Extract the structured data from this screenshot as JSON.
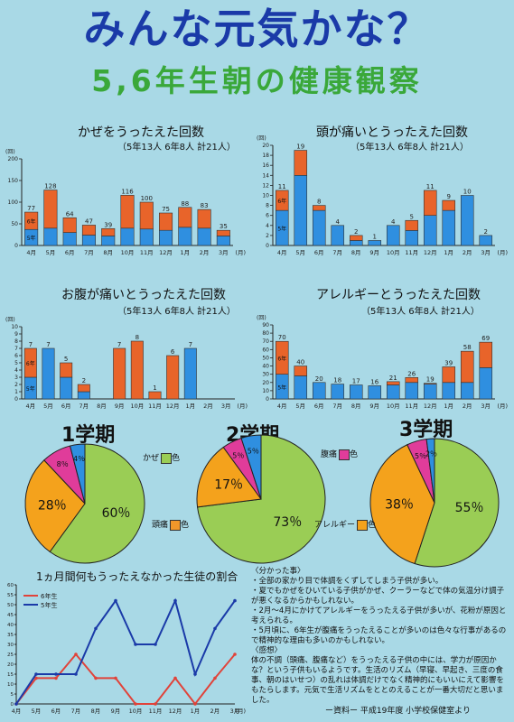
{
  "header": {
    "title": "みんな元気かな？",
    "subtitle": "5,6年生朝の健康観察"
  },
  "colors": {
    "grade5": "#2f8fe0",
    "grade6": "#e8642a",
    "cold": "#9acd55",
    "headache": "#f0972a",
    "stomach": "#e03c9a",
    "allergy": "#f4a21c",
    "pie_bg": "#b9e07a",
    "line5": "#1a3aa8",
    "line6": "#e0433a"
  },
  "chart_data": [
    {
      "id": "cold",
      "type": "bar",
      "stacked": true,
      "title": "かぜをうったえた回数",
      "note": "（5年13人 6年8人 計21人）",
      "unit": "(回)",
      "xunit": "(月)",
      "categories": [
        "4月",
        "5月",
        "6月",
        "7月",
        "8月",
        "10月",
        "11月",
        "12月",
        "1月",
        "2月",
        "3月"
      ],
      "ylim": [
        0,
        200
      ],
      "yticks": [
        0,
        50,
        100,
        150,
        200
      ],
      "series": [
        {
          "name": "5年",
          "values": [
            37,
            40,
            30,
            24,
            22,
            40,
            38,
            35,
            42,
            40,
            22
          ]
        },
        {
          "name": "6年",
          "values": [
            40,
            88,
            34,
            23,
            17,
            76,
            62,
            40,
            46,
            43,
            13
          ]
        }
      ],
      "labels": [
        "77",
        "128",
        "64",
        "47",
        "39",
        "116",
        "100",
        "75",
        "88",
        "83",
        "35"
      ]
    },
    {
      "id": "head",
      "type": "bar",
      "stacked": true,
      "title": "頭が痛いとうったえた回数",
      "note": "（5年13人 6年8人 計21人）",
      "unit": "(回)",
      "xunit": "(月)",
      "categories": [
        "4月",
        "5月",
        "6月",
        "7月",
        "8月",
        "9月",
        "10月",
        "11月",
        "12月",
        "1月",
        "2月",
        "3月"
      ],
      "ylim": [
        0,
        20
      ],
      "yticks": [
        0,
        2,
        4,
        6,
        8,
        10,
        12,
        14,
        16,
        18,
        20
      ],
      "series": [
        {
          "name": "5年",
          "values": [
            7,
            14,
            7,
            4,
            1,
            1,
            4,
            3,
            6,
            7,
            10,
            2
          ]
        },
        {
          "name": "6年",
          "values": [
            4,
            5,
            1,
            0,
            1,
            0,
            0,
            2,
            5,
            2,
            0,
            0
          ]
        }
      ],
      "labels": [
        "11",
        "19",
        "8",
        "4",
        "2",
        "1",
        "4",
        "5",
        "11",
        "9",
        "10",
        "2"
      ]
    },
    {
      "id": "stomach",
      "type": "bar",
      "stacked": true,
      "title": "お腹が痛いとうったえた回数",
      "note": "（5年13人 6年8人 計21人）",
      "unit": "(回)",
      "xunit": "(月)",
      "categories": [
        "4月",
        "5月",
        "6月",
        "7月",
        "8月",
        "9月",
        "10月",
        "11月",
        "12月",
        "1月",
        "2月",
        "3月"
      ],
      "ylim": [
        0,
        10
      ],
      "yticks": [
        0,
        1,
        2,
        3,
        4,
        5,
        6,
        7,
        8,
        9,
        10
      ],
      "series": [
        {
          "name": "5年",
          "values": [
            3,
            7,
            3,
            1,
            0,
            0,
            0,
            0,
            0,
            7,
            0,
            0
          ]
        },
        {
          "name": "6年",
          "values": [
            4,
            0,
            2,
            1,
            0,
            7,
            8,
            1,
            6,
            0,
            0,
            0
          ]
        }
      ],
      "labels": [
        "7",
        "7",
        "5",
        "2",
        "",
        "7",
        "8",
        "1",
        "6",
        "7",
        "",
        ""
      ]
    },
    {
      "id": "allergy",
      "type": "bar",
      "stacked": true,
      "title": "アレルギーとうったえた回数",
      "note": "（5年13人 6年8人 計21人）",
      "unit": "(回)",
      "xunit": "(月)",
      "categories": [
        "4月",
        "5月",
        "6月",
        "7月",
        "8月",
        "9月",
        "10月",
        "11月",
        "12月",
        "1月",
        "2月",
        "3月"
      ],
      "ylim": [
        0,
        90
      ],
      "yticks": [
        0,
        10,
        20,
        30,
        40,
        50,
        60,
        70,
        80,
        90
      ],
      "series": [
        {
          "name": "5年",
          "values": [
            30,
            28,
            20,
            18,
            17,
            16,
            17,
            20,
            18,
            20,
            20,
            38
          ]
        },
        {
          "name": "6年",
          "values": [
            40,
            12,
            0,
            0,
            0,
            0,
            4,
            6,
            1,
            19,
            38,
            31
          ]
        }
      ],
      "labels": [
        "70",
        "40",
        "20",
        "18",
        "17",
        "16",
        "21",
        "26",
        "19",
        "39",
        "58",
        "69"
      ]
    },
    {
      "id": "term1",
      "type": "pie",
      "title": "1学期",
      "slices": [
        {
          "name": "かぜ",
          "value": 60,
          "label": "60％"
        },
        {
          "name": "アレルギー",
          "value": 28,
          "label": "28％"
        },
        {
          "name": "腹痛",
          "value": 8,
          "label": "8％"
        },
        {
          "name": "頭痛",
          "value": 4,
          "label": "4％"
        }
      ]
    },
    {
      "id": "term2",
      "type": "pie",
      "title": "2学期",
      "slices": [
        {
          "name": "かぜ",
          "value": 73,
          "label": "73％"
        },
        {
          "name": "アレルギー",
          "value": 17,
          "label": "17％"
        },
        {
          "name": "腹痛",
          "value": 5,
          "label": "5％"
        },
        {
          "name": "頭痛",
          "value": 5,
          "label": "5％"
        }
      ]
    },
    {
      "id": "term3",
      "type": "pie",
      "title": "3学期",
      "slices": [
        {
          "name": "かぜ",
          "value": 55,
          "label": "55％"
        },
        {
          "name": "アレルギー",
          "value": 38,
          "label": "38％"
        },
        {
          "name": "腹痛",
          "value": 5,
          "label": "5％"
        },
        {
          "name": "頭痛",
          "value": 2,
          "label": "2％"
        }
      ]
    },
    {
      "id": "line",
      "type": "line",
      "title": "1ヵ月間何もうったえなかった生徒の割合",
      "unit": "(%)",
      "xunit": "(月)",
      "categories": [
        "4月",
        "5月",
        "6月",
        "7月",
        "8月",
        "9月",
        "10月",
        "11月",
        "12月",
        "1月",
        "2月",
        "3月"
      ],
      "ylim": [
        0,
        60
      ],
      "yticks": [
        0,
        5,
        10,
        15,
        20,
        25,
        30,
        35,
        40,
        45,
        50,
        55,
        60
      ],
      "series": [
        {
          "name": "6年生",
          "values": [
            0,
            13,
            13,
            25,
            13,
            13,
            0,
            0,
            13,
            0,
            13,
            25
          ]
        },
        {
          "name": "5年生",
          "values": [
            0,
            15,
            15,
            15,
            38,
            52,
            30,
            30,
            52,
            15,
            38,
            52
          ]
        }
      ]
    }
  ],
  "legend": {
    "cold": "かぜ",
    "headache": "頭痛",
    "stomach": "腹痛",
    "allergy": "アレルギー",
    "color_suffix": "色"
  },
  "notes": {
    "heading": "〈分かった事〉",
    "items": [
      "・全部の家かり目で体調をくずしてしまう子供が多い。",
      "・夏でもかぜをひいている子供がかぜ、クーラーなどで体の気温分け調子が悪くなるからかもしれない。",
      "・2月〜4月にかけてアレルギーをうったえる子供が多いが、花粉が原因と考えられる。",
      "・5月頃に、6年生が腹痛をうったえることが多いのは色々な行事があるので精神的な理由も多いのかもしれない。"
    ],
    "impression_heading": "〈感想〉",
    "impression": "体の不調（頭痛、腹痛など）をうったえる子供の中には、学力が原因かな？という子供もいるようです。生活のリズム（早寝、早起き、三度の食事、朝のはいせつ）の乱れは体調だけでなく精神的にもいいにえて影響をもたらします。元気で生活リズムをととのえることが一番大切だと思いました。"
  },
  "footer": "ー資料ー 平成19年度 小学校保健室より"
}
